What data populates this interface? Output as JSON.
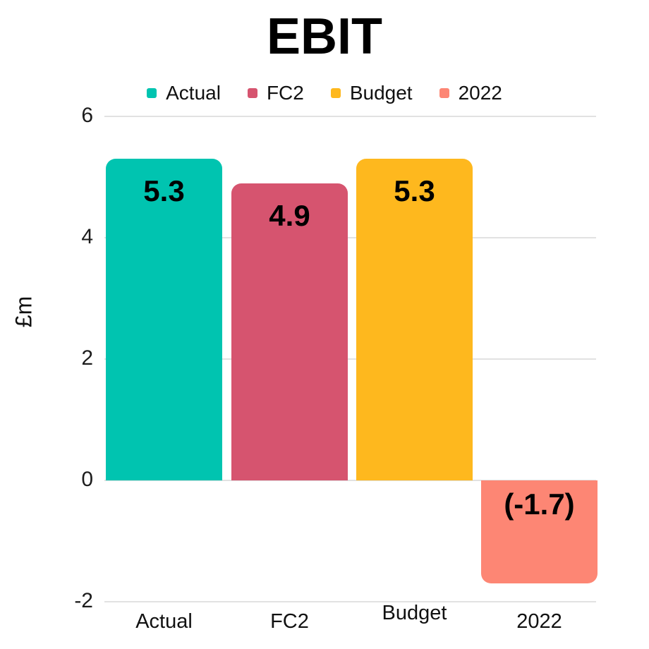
{
  "chart_data": {
    "type": "bar",
    "title": "EBIT",
    "ylabel": "£m",
    "xlabel": "",
    "categories": [
      "Actual",
      "FC2",
      "Budget",
      "2022"
    ],
    "values": [
      5.3,
      4.9,
      5.3,
      -1.7
    ],
    "value_labels": [
      "5.3",
      "4.9",
      "5.3",
      "(-1.7)"
    ],
    "colors": [
      "#00c4b0",
      "#d6546f",
      "#feb81e",
      "#fd8674"
    ],
    "ylim": [
      -2,
      6
    ],
    "yticks": [
      6,
      4,
      2,
      0,
      -2
    ],
    "grid": true,
    "grid_color": "#e2e2e2",
    "legend": {
      "position": "top",
      "entries": [
        "Actual",
        "FC2",
        "Budget",
        "2022"
      ]
    },
    "label_text_color": "#000000"
  }
}
